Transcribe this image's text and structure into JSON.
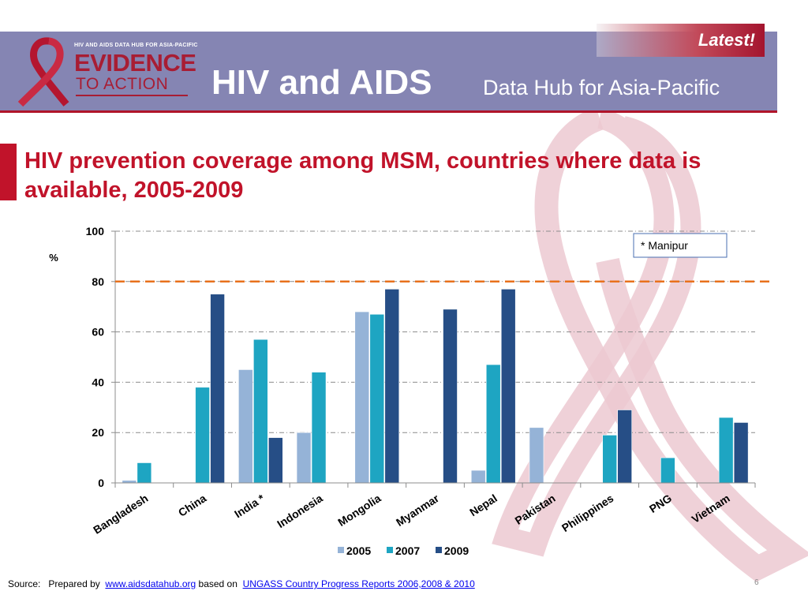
{
  "header": {
    "logo_small_text": "HIV AND AIDS DATA HUB FOR ASIA-PACIFIC",
    "logo_line1": "EVIDENCE",
    "logo_line2": "TO ACTION",
    "title_main": "HIV and AIDS",
    "title_sub": "Data Hub for Asia-Pacific",
    "latest_label": "Latest!"
  },
  "slide": {
    "title": "HIV prevention coverage among  MSM, countries where data is available,  2005-2009",
    "page_number": "6"
  },
  "source": {
    "label": "Source:",
    "prepared_by": "Prepared by",
    "link1": "www.aidsdatahub.org",
    "based_on": "based on",
    "link2": "UNGASS Country Progress Reports  2006,2008 & 2010"
  },
  "chart_data": {
    "type": "bar",
    "title": "",
    "ylabel": "%",
    "ylim": [
      0,
      100
    ],
    "yticks": [
      0,
      20,
      40,
      60,
      80,
      100
    ],
    "grid": true,
    "reference_line": 80,
    "annotation": "* Manipur",
    "legend_position": "bottom",
    "categories": [
      "Bangladesh",
      "China",
      "India *",
      "Indonesia",
      "Mongolia",
      "Myanmar",
      "Nepal",
      "Pakistan",
      "Philippines",
      "PNG",
      "Vietnam"
    ],
    "series": [
      {
        "name": "2005",
        "color": "#95b3d7",
        "values": [
          1,
          null,
          45,
          20,
          68,
          null,
          5,
          22,
          null,
          null,
          null
        ]
      },
      {
        "name": "2007",
        "color": "#1ea5c2",
        "values": [
          8,
          38,
          57,
          44,
          67,
          null,
          47,
          null,
          19,
          10,
          26
        ]
      },
      {
        "name": "2009",
        "color": "#264e86",
        "values": [
          null,
          75,
          18,
          null,
          77,
          69,
          77,
          null,
          29,
          null,
          24
        ]
      }
    ]
  },
  "colors": {
    "header_bg": "#8585b3",
    "accent_red": "#c1132a",
    "reference_line": "#e8711c"
  }
}
